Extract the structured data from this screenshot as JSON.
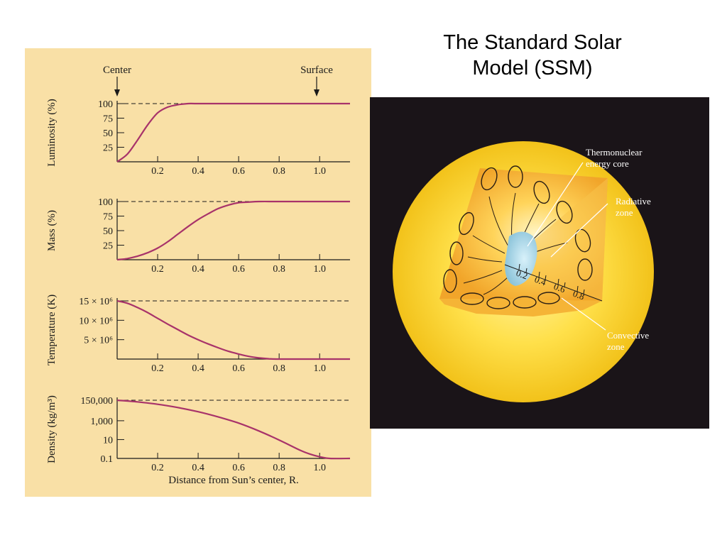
{
  "slide": {
    "title_line1": "The Standard Solar",
    "title_line2": "Model (SSM)"
  },
  "colors": {
    "panel_bg": "#f9e0a6",
    "curve": "#a8336a",
    "sun_bg": "#1a1418",
    "sun_outer": "#f3c81d",
    "core": "#a5d5e6"
  },
  "markers": {
    "center": "Center",
    "surface": "Surface"
  },
  "chart_data": [
    {
      "type": "line",
      "ylabel": "Luminosity (%)",
      "x_ticks": [
        "0.2",
        "0.4",
        "0.6",
        "0.8",
        "1.0"
      ],
      "y_tick_labels": [
        "100",
        "75",
        "50",
        "25"
      ],
      "y_tick_values": [
        100,
        75,
        50,
        25
      ],
      "ylim": [
        0,
        100
      ],
      "xlim": [
        0,
        1.15
      ],
      "reference_line": 100,
      "x": [
        0,
        0.05,
        0.1,
        0.15,
        0.2,
        0.25,
        0.3,
        0.35,
        0.4,
        0.6,
        0.8,
        1.0,
        1.15
      ],
      "y": [
        0,
        13,
        37,
        63,
        84,
        94,
        98,
        100,
        100,
        100,
        100,
        100,
        100
      ]
    },
    {
      "type": "line",
      "ylabel": "Mass (%)",
      "x_ticks": [
        "0.2",
        "0.4",
        "0.6",
        "0.8",
        "1.0"
      ],
      "y_tick_labels": [
        "100",
        "75",
        "50",
        "25"
      ],
      "y_tick_values": [
        100,
        75,
        50,
        25
      ],
      "ylim": [
        0,
        100
      ],
      "xlim": [
        0,
        1.15
      ],
      "reference_line": 100,
      "x": [
        0,
        0.05,
        0.1,
        0.15,
        0.2,
        0.25,
        0.3,
        0.35,
        0.4,
        0.45,
        0.5,
        0.55,
        0.6,
        0.65,
        0.7,
        0.8,
        1.0,
        1.15
      ],
      "y": [
        0,
        2,
        6,
        12,
        20,
        31,
        44,
        57,
        69,
        79,
        88,
        94,
        98,
        99,
        100,
        100,
        100,
        100
      ]
    },
    {
      "type": "line",
      "ylabel": "Temperature (K)",
      "x_ticks": [
        "0.2",
        "0.4",
        "0.6",
        "0.8",
        "1.0"
      ],
      "y_tick_labels": [
        "15 × 10⁶",
        "10 × 10⁶",
        "5 × 10⁶"
      ],
      "y_tick_values": [
        15000000,
        10000000,
        5000000
      ],
      "ylim": [
        0,
        15000000
      ],
      "xlim": [
        0,
        1.15
      ],
      "reference_line": 15000000,
      "x": [
        0,
        0.05,
        0.1,
        0.15,
        0.2,
        0.25,
        0.3,
        0.35,
        0.4,
        0.45,
        0.5,
        0.55,
        0.6,
        0.65,
        0.7,
        0.75,
        0.8,
        1.0,
        1.15
      ],
      "y": [
        15000000,
        14400000,
        13300000,
        12000000,
        10500000,
        9000000,
        7600000,
        6200000,
        5000000,
        3900000,
        2900000,
        2000000,
        1300000,
        700000,
        300000,
        80000,
        0,
        0,
        0
      ]
    },
    {
      "type": "line",
      "ylabel": "Density (kg/m³)",
      "xlabel": "Distance from Sun’s center, R.",
      "x_ticks": [
        "0.2",
        "0.4",
        "0.6",
        "0.8",
        "1.0"
      ],
      "y_tick_labels": [
        "150,000",
        "1,000",
        "10",
        "0.1"
      ],
      "y_tick_values": [
        150000,
        1000,
        10,
        0.1
      ],
      "y_scale": "log",
      "xlim": [
        0,
        1.15
      ],
      "reference_line": 150000,
      "x": [
        0,
        0.1,
        0.2,
        0.3,
        0.4,
        0.5,
        0.6,
        0.7,
        0.8,
        0.9,
        0.95,
        1.0,
        1.05,
        1.15
      ],
      "y": [
        150000,
        100000,
        56000,
        25000,
        9000,
        2500,
        560,
        82,
        9,
        0.8,
        0.3,
        0.15,
        0.1,
        0.1
      ]
    }
  ],
  "diagram": {
    "label_core": [
      "Thermonuclear",
      "energy core"
    ],
    "label_radiative": [
      "Radiative",
      "zone"
    ],
    "label_convective": [
      "Convective",
      "zone"
    ],
    "scale_ticks": [
      "0.2",
      "0.4",
      "0.6",
      "0.8"
    ]
  }
}
